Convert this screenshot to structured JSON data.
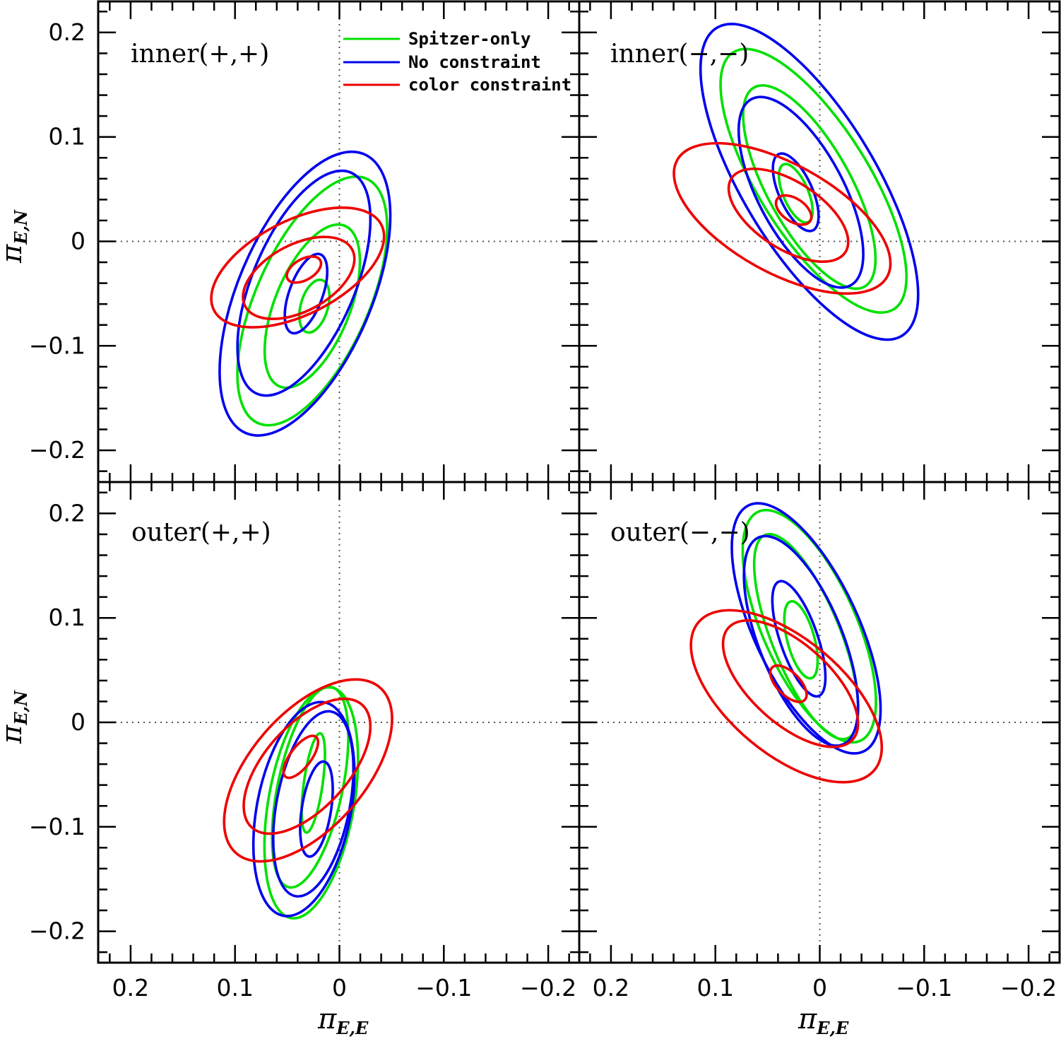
{
  "chart_data": {
    "type": "contour",
    "layout": "2x2 panels, shared axes",
    "x_axis": {
      "label": "π",
      "label_subscript": "E,E",
      "range": [
        0.23,
        -0.23
      ],
      "direction": "reversed",
      "major_ticks": [
        0.2,
        0.1,
        0,
        -0.1,
        -0.2
      ],
      "tick_labels": [
        "0.2",
        "0.1",
        "0",
        "−0.1",
        "−0.2"
      ],
      "minor_step": 0.02
    },
    "y_axis": {
      "label": "π",
      "label_subscript": "E,N",
      "range": [
        -0.225,
        0.23
      ],
      "major_ticks": [
        0.2,
        0.1,
        0,
        -0.1,
        -0.2
      ],
      "tick_labels": [
        "0.2",
        "0.1",
        "0",
        "−0.1",
        "−0.2"
      ],
      "minor_step": 0.02
    },
    "reference_lines": {
      "x": 0,
      "y": 0,
      "style": "dotted"
    },
    "legend": {
      "location": "top-left panel, upper middle",
      "entries": [
        {
          "name": "Spitzer-only",
          "color": "#00e000"
        },
        {
          "name": "No constraint",
          "color": "#0000ee"
        },
        {
          "name": "color constraint",
          "color": "#ee0000"
        }
      ]
    },
    "panels": [
      {
        "label": "inner(+,+)",
        "contours": {
          "Spitzer-only": [
            {
              "cx": 0.024,
              "cy": -0.062,
              "semi_major": 0.026,
              "semi_minor": 0.013,
              "angle_deg": 106
            },
            {
              "cx": 0.026,
              "cy": -0.062,
              "semi_major": 0.083,
              "semi_minor": 0.036,
              "angle_deg": 112
            },
            {
              "cx": 0.026,
              "cy": -0.057,
              "semi_major": 0.128,
              "semi_minor": 0.054,
              "angle_deg": 114
            }
          ],
          "No constraint": [
            {
              "cx": 0.032,
              "cy": -0.05,
              "semi_major": 0.04,
              "semi_minor": 0.016,
              "angle_deg": 110
            },
            {
              "cx": 0.034,
              "cy": -0.04,
              "semi_major": 0.115,
              "semi_minor": 0.049,
              "angle_deg": 113
            },
            {
              "cx": 0.033,
              "cy": -0.05,
              "semi_major": 0.145,
              "semi_minor": 0.064,
              "angle_deg": 113
            }
          ],
          "color constraint": [
            {
              "cx": 0.034,
              "cy": -0.027,
              "semi_major": 0.018,
              "semi_minor": 0.01,
              "angle_deg": 150
            },
            {
              "cx": 0.039,
              "cy": -0.035,
              "semi_major": 0.058,
              "semi_minor": 0.032,
              "angle_deg": 152
            },
            {
              "cx": 0.04,
              "cy": -0.025,
              "semi_major": 0.09,
              "semi_minor": 0.045,
              "angle_deg": 153
            }
          ]
        }
      },
      {
        "label": "inner(−,−)",
        "contours": {
          "Spitzer-only": [
            {
              "cx": 0.023,
              "cy": 0.046,
              "semi_major": 0.03,
              "semi_minor": 0.012,
              "angle_deg": 67
            },
            {
              "cx": 0.01,
              "cy": 0.052,
              "semi_major": 0.109,
              "semi_minor": 0.04,
              "angle_deg": 61
            },
            {
              "cx": 0.006,
              "cy": 0.058,
              "semi_major": 0.145,
              "semi_minor": 0.053,
              "angle_deg": 58
            }
          ],
          "No constraint": [
            {
              "cx": 0.023,
              "cy": 0.047,
              "semi_major": 0.04,
              "semi_minor": 0.016,
              "angle_deg": 66
            },
            {
              "cx": 0.018,
              "cy": 0.047,
              "semi_major": 0.101,
              "semi_minor": 0.041,
              "angle_deg": 62
            },
            {
              "cx": 0.01,
              "cy": 0.057,
              "semi_major": 0.172,
              "semi_minor": 0.064,
              "angle_deg": 59
            }
          ],
          "color constraint": [
            {
              "cx": 0.025,
              "cy": 0.03,
              "semi_major": 0.019,
              "semi_minor": 0.011,
              "angle_deg": 34
            },
            {
              "cx": 0.03,
              "cy": 0.025,
              "semi_major": 0.065,
              "semi_minor": 0.032,
              "angle_deg": 33
            },
            {
              "cx": 0.036,
              "cy": 0.022,
              "semi_major": 0.115,
              "semi_minor": 0.052,
              "angle_deg": 29
            }
          ]
        }
      },
      {
        "label": "outer(+,+)",
        "contours": {
          "Spitzer-only": [
            {
              "cx": 0.025,
              "cy": -0.058,
              "semi_major": 0.048,
              "semi_minor": 0.009,
              "angle_deg": 98
            },
            {
              "cx": 0.028,
              "cy": -0.062,
              "semi_major": 0.098,
              "semi_minor": 0.031,
              "angle_deg": 102
            },
            {
              "cx": 0.027,
              "cy": -0.077,
              "semi_major": 0.112,
              "semi_minor": 0.041,
              "angle_deg": 100
            }
          ],
          "No constraint": [
            {
              "cx": 0.022,
              "cy": -0.083,
              "semi_major": 0.046,
              "semi_minor": 0.014,
              "angle_deg": 99
            },
            {
              "cx": 0.025,
              "cy": -0.078,
              "semi_major": 0.09,
              "semi_minor": 0.035,
              "angle_deg": 101
            },
            {
              "cx": 0.034,
              "cy": -0.083,
              "semi_major": 0.104,
              "semi_minor": 0.045,
              "angle_deg": 101
            }
          ],
          "color constraint": [
            {
              "cx": 0.037,
              "cy": -0.033,
              "semi_major": 0.024,
              "semi_minor": 0.01,
              "angle_deg": 127
            },
            {
              "cx": 0.031,
              "cy": -0.042,
              "semi_major": 0.079,
              "semi_minor": 0.04,
              "angle_deg": 132
            },
            {
              "cx": 0.03,
              "cy": -0.046,
              "semi_major": 0.105,
              "semi_minor": 0.055,
              "angle_deg": 131
            }
          ]
        }
      },
      {
        "label": "outer(−,−)",
        "contours": {
          "Spitzer-only": [
            {
              "cx": 0.018,
              "cy": 0.079,
              "semi_major": 0.038,
              "semi_minor": 0.013,
              "angle_deg": 75
            },
            {
              "cx": 0.013,
              "cy": 0.082,
              "semi_major": 0.105,
              "semi_minor": 0.033,
              "angle_deg": 68
            },
            {
              "cx": 0.01,
              "cy": 0.092,
              "semi_major": 0.12,
              "semi_minor": 0.045,
              "angle_deg": 66
            }
          ],
          "No constraint": [
            {
              "cx": 0.02,
              "cy": 0.08,
              "semi_major": 0.058,
              "semi_minor": 0.018,
              "angle_deg": 71
            },
            {
              "cx": 0.018,
              "cy": 0.078,
              "semi_major": 0.107,
              "semi_minor": 0.04,
              "angle_deg": 68
            },
            {
              "cx": 0.013,
              "cy": 0.09,
              "semi_major": 0.13,
              "semi_minor": 0.05,
              "angle_deg": 65
            }
          ],
          "color constraint": [
            {
              "cx": 0.03,
              "cy": 0.037,
              "semi_major": 0.022,
              "semi_minor": 0.011,
              "angle_deg": 45
            },
            {
              "cx": 0.028,
              "cy": 0.037,
              "semi_major": 0.08,
              "semi_minor": 0.038,
              "angle_deg": 42
            },
            {
              "cx": 0.032,
              "cy": 0.025,
              "semi_major": 0.11,
              "semi_minor": 0.055,
              "angle_deg": 40
            }
          ]
        }
      }
    ]
  }
}
